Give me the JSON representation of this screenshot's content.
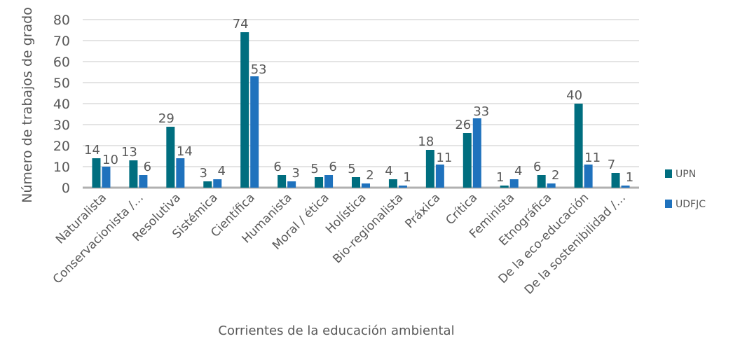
{
  "chart_data": {
    "type": "bar",
    "title": "",
    "xlabel": "Corrientes de la educación ambiental",
    "ylabel": "Número de trabajos de grado",
    "ylim": [
      0,
      80
    ],
    "yticks": [
      0,
      10,
      20,
      30,
      40,
      50,
      60,
      70,
      80
    ],
    "grid": true,
    "legend_position": "right",
    "categories": [
      "Naturalista",
      "Conservacionista  /…",
      "Resolutiva",
      "Sistémica",
      "Científica",
      "Humanista",
      "Moral / ética",
      "Holística",
      "Bio-regionalista",
      "Práxica",
      "Crítica",
      "Feminista",
      "Etnográfica",
      "De la eco-educación",
      "De la sostenibilidad /…"
    ],
    "series": [
      {
        "name": "UPN",
        "color": "#006e7f",
        "values": [
          14,
          13,
          29,
          3,
          74,
          6,
          5,
          5,
          4,
          18,
          26,
          1,
          6,
          40,
          7
        ]
      },
      {
        "name": "UDFJC",
        "color": "#1f72bd",
        "values": [
          10,
          6,
          14,
          4,
          53,
          3,
          6,
          2,
          1,
          11,
          33,
          4,
          2,
          11,
          1
        ]
      }
    ]
  }
}
